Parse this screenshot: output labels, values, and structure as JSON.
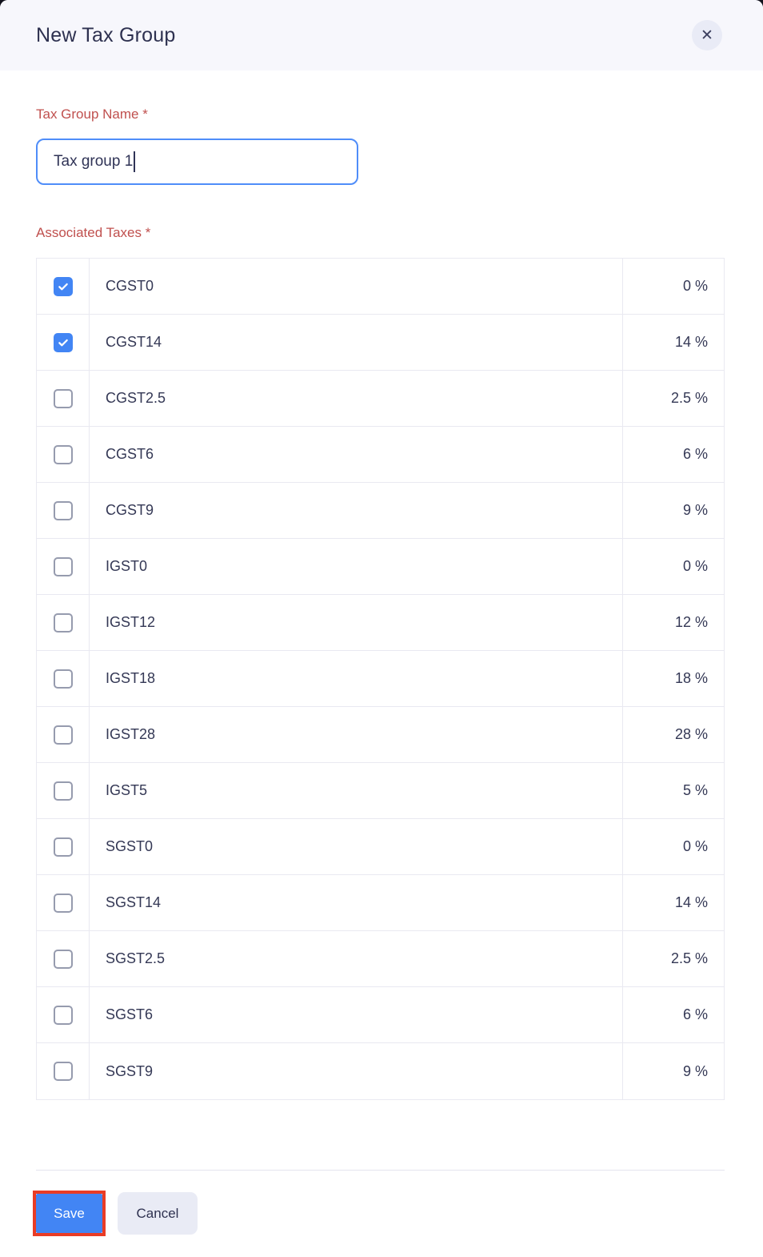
{
  "header": {
    "title": "New Tax Group",
    "close_icon": "✕"
  },
  "form": {
    "tax_group_name": {
      "label": "Tax Group Name *",
      "value": "Tax group 1"
    },
    "associated_taxes": {
      "label": "Associated Taxes *"
    }
  },
  "taxes": [
    {
      "name": "CGST0",
      "rate": "0 %",
      "checked": true
    },
    {
      "name": "CGST14",
      "rate": "14 %",
      "checked": true
    },
    {
      "name": "CGST2.5",
      "rate": "2.5 %",
      "checked": false
    },
    {
      "name": "CGST6",
      "rate": "6 %",
      "checked": false
    },
    {
      "name": "CGST9",
      "rate": "9 %",
      "checked": false
    },
    {
      "name": "IGST0",
      "rate": "0 %",
      "checked": false
    },
    {
      "name": "IGST12",
      "rate": "12 %",
      "checked": false
    },
    {
      "name": "IGST18",
      "rate": "18 %",
      "checked": false
    },
    {
      "name": "IGST28",
      "rate": "28 %",
      "checked": false
    },
    {
      "name": "IGST5",
      "rate": "5 %",
      "checked": false
    },
    {
      "name": "SGST0",
      "rate": "0 %",
      "checked": false
    },
    {
      "name": "SGST14",
      "rate": "14 %",
      "checked": false
    },
    {
      "name": "SGST2.5",
      "rate": "2.5 %",
      "checked": false
    },
    {
      "name": "SGST6",
      "rate": "6 %",
      "checked": false
    },
    {
      "name": "SGST9",
      "rate": "9 %",
      "checked": false
    }
  ],
  "footer": {
    "save_label": "Save",
    "cancel_label": "Cancel"
  },
  "colors": {
    "accent_blue": "#4285f4",
    "input_focus_border": "#4f8df9",
    "required_label_red": "#c0504e",
    "annotation_red": "#e93c26",
    "header_bg": "#f7f7fc",
    "table_border": "#e9e9f1",
    "text_dark": "#2f3356"
  }
}
